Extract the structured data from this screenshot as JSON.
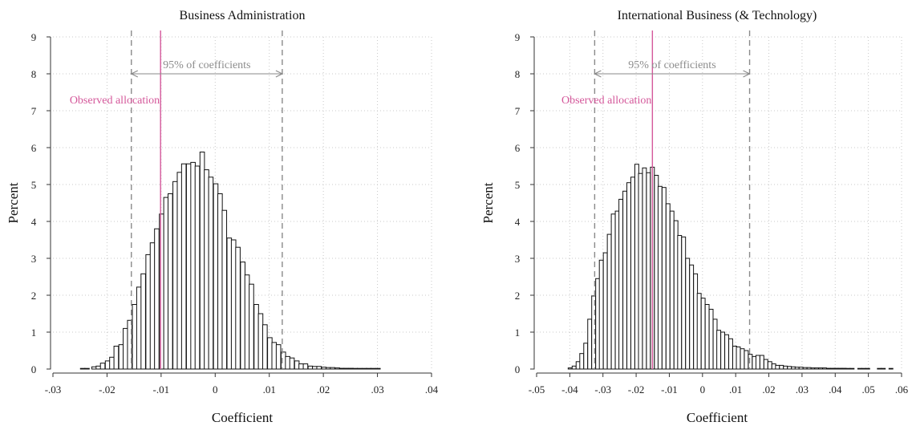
{
  "chart_data": [
    {
      "type": "bar",
      "title": "Business Administration",
      "xlabel": "Coefficient",
      "ylabel": "Percent",
      "xlim": [
        -0.03,
        0.04
      ],
      "ylim": [
        0,
        9
      ],
      "x_ticks": [
        -0.03,
        -0.02,
        -0.01,
        0,
        0.01,
        0.02,
        0.03,
        0.04
      ],
      "x_tick_labels": [
        "-.03",
        "-.02",
        "-.01",
        "0",
        ".01",
        ".02",
        ".03",
        ".04"
      ],
      "y_ticks": [
        0,
        1,
        2,
        3,
        4,
        5,
        6,
        7,
        8,
        9
      ],
      "y_tick_labels": [
        "0",
        "1",
        "2",
        "3",
        "4",
        "5",
        "6",
        "7",
        "8",
        "9"
      ],
      "grid": true,
      "bin_width": 0.00083,
      "bins": [
        {
          "x": -0.0245,
          "y": 0.01
        },
        {
          "x": -0.0237,
          "y": 0.01
        },
        {
          "x": -0.0224,
          "y": 0.06
        },
        {
          "x": -0.0216,
          "y": 0.08
        },
        {
          "x": -0.0208,
          "y": 0.16
        },
        {
          "x": -0.0199,
          "y": 0.22
        },
        {
          "x": -0.0191,
          "y": 0.32
        },
        {
          "x": -0.0183,
          "y": 0.62
        },
        {
          "x": -0.0174,
          "y": 0.66
        },
        {
          "x": -0.0166,
          "y": 1.1
        },
        {
          "x": -0.0158,
          "y": 1.32
        },
        {
          "x": -0.0149,
          "y": 1.75
        },
        {
          "x": -0.0141,
          "y": 2.22
        },
        {
          "x": -0.0133,
          "y": 2.58
        },
        {
          "x": -0.0124,
          "y": 3.1
        },
        {
          "x": -0.0116,
          "y": 3.42
        },
        {
          "x": -0.0108,
          "y": 3.8
        },
        {
          "x": -0.0099,
          "y": 4.2
        },
        {
          "x": -0.0091,
          "y": 4.65
        },
        {
          "x": -0.0083,
          "y": 4.75
        },
        {
          "x": -0.0074,
          "y": 5.08
        },
        {
          "x": -0.0066,
          "y": 5.33
        },
        {
          "x": -0.0058,
          "y": 5.56
        },
        {
          "x": -0.0049,
          "y": 5.56
        },
        {
          "x": -0.0041,
          "y": 5.6
        },
        {
          "x": -0.0033,
          "y": 5.5
        },
        {
          "x": -0.0024,
          "y": 5.88
        },
        {
          "x": -0.0016,
          "y": 5.4
        },
        {
          "x": -0.0008,
          "y": 5.2
        },
        {
          "x": 0.0001,
          "y": 5.02
        },
        {
          "x": 0.0009,
          "y": 4.75
        },
        {
          "x": 0.0017,
          "y": 4.3
        },
        {
          "x": 0.0026,
          "y": 3.55
        },
        {
          "x": 0.0034,
          "y": 3.5
        },
        {
          "x": 0.0042,
          "y": 3.3
        },
        {
          "x": 0.0051,
          "y": 2.9
        },
        {
          "x": 0.0059,
          "y": 2.55
        },
        {
          "x": 0.0067,
          "y": 2.3
        },
        {
          "x": 0.0076,
          "y": 1.75
        },
        {
          "x": 0.0084,
          "y": 1.5
        },
        {
          "x": 0.0092,
          "y": 1.2
        },
        {
          "x": 0.0101,
          "y": 0.85
        },
        {
          "x": 0.0109,
          "y": 0.72
        },
        {
          "x": 0.0117,
          "y": 0.66
        },
        {
          "x": 0.0126,
          "y": 0.46
        },
        {
          "x": 0.0134,
          "y": 0.34
        },
        {
          "x": 0.0142,
          "y": 0.3
        },
        {
          "x": 0.0151,
          "y": 0.22
        },
        {
          "x": 0.0159,
          "y": 0.14
        },
        {
          "x": 0.0167,
          "y": 0.14
        },
        {
          "x": 0.0176,
          "y": 0.08
        },
        {
          "x": 0.0184,
          "y": 0.07
        },
        {
          "x": 0.0192,
          "y": 0.07
        },
        {
          "x": 0.0201,
          "y": 0.05
        },
        {
          "x": 0.0209,
          "y": 0.04
        },
        {
          "x": 0.0217,
          "y": 0.04
        },
        {
          "x": 0.0226,
          "y": 0.03
        },
        {
          "x": 0.0234,
          "y": 0.02
        },
        {
          "x": 0.0242,
          "y": 0.02
        },
        {
          "x": 0.0251,
          "y": 0.02
        },
        {
          "x": 0.0259,
          "y": 0.01
        },
        {
          "x": 0.0267,
          "y": 0.01
        },
        {
          "x": 0.0276,
          "y": 0.01
        },
        {
          "x": 0.0284,
          "y": 0.01
        },
        {
          "x": 0.0292,
          "y": 0.01
        },
        {
          "x": 0.0301,
          "y": 0.01
        }
      ],
      "ci_lower": -0.0155,
      "ci_upper": 0.0124,
      "ci_label": "95% of coefficients",
      "ci_arrow_y": 8.0,
      "observed": -0.0101,
      "observed_label": "Observed allocation",
      "observed_label_y": 7.3
    },
    {
      "type": "bar",
      "title": "International Business (& Technology)",
      "xlabel": "Coefficient",
      "ylabel": "Percent",
      "xlim": [
        -0.05,
        0.06
      ],
      "ylim": [
        0,
        9
      ],
      "x_ticks": [
        -0.05,
        -0.04,
        -0.03,
        -0.02,
        -0.01,
        0,
        0.01,
        0.02,
        0.03,
        0.04,
        0.05,
        0.06
      ],
      "x_tick_labels": [
        "-.05",
        "-.04",
        "-.03",
        "-.02",
        "-.01",
        "0",
        ".01",
        ".02",
        ".03",
        ".04",
        ".05",
        ".06"
      ],
      "y_ticks": [
        0,
        1,
        2,
        3,
        4,
        5,
        6,
        7,
        8,
        9
      ],
      "y_tick_labels": [
        "0",
        "1",
        "2",
        "3",
        "4",
        "5",
        "6",
        "7",
        "8",
        "9"
      ],
      "grid": true,
      "bin_width": 0.00118,
      "bins": [
        {
          "x": -0.0399,
          "y": 0.03
        },
        {
          "x": -0.0387,
          "y": 0.08
        },
        {
          "x": -0.0375,
          "y": 0.2
        },
        {
          "x": -0.0364,
          "y": 0.42
        },
        {
          "x": -0.0352,
          "y": 0.7
        },
        {
          "x": -0.034,
          "y": 1.35
        },
        {
          "x": -0.0328,
          "y": 1.98
        },
        {
          "x": -0.0316,
          "y": 2.45
        },
        {
          "x": -0.0305,
          "y": 2.95
        },
        {
          "x": -0.0293,
          "y": 3.15
        },
        {
          "x": -0.0281,
          "y": 3.65
        },
        {
          "x": -0.0269,
          "y": 4.2
        },
        {
          "x": -0.0257,
          "y": 4.28
        },
        {
          "x": -0.0246,
          "y": 4.6
        },
        {
          "x": -0.0234,
          "y": 4.82
        },
        {
          "x": -0.0222,
          "y": 5.05
        },
        {
          "x": -0.021,
          "y": 5.2
        },
        {
          "x": -0.0198,
          "y": 5.55
        },
        {
          "x": -0.0187,
          "y": 5.3
        },
        {
          "x": -0.0175,
          "y": 5.45
        },
        {
          "x": -0.0163,
          "y": 5.32
        },
        {
          "x": -0.0151,
          "y": 5.47
        },
        {
          "x": -0.0139,
          "y": 5.25
        },
        {
          "x": -0.0128,
          "y": 4.95
        },
        {
          "x": -0.0116,
          "y": 4.92
        },
        {
          "x": -0.0104,
          "y": 4.48
        },
        {
          "x": -0.0092,
          "y": 4.28
        },
        {
          "x": -0.008,
          "y": 4.02
        },
        {
          "x": -0.0069,
          "y": 3.62
        },
        {
          "x": -0.0057,
          "y": 3.58
        },
        {
          "x": -0.0045,
          "y": 3.0
        },
        {
          "x": -0.0033,
          "y": 2.82
        },
        {
          "x": -0.0021,
          "y": 2.58
        },
        {
          "x": -0.001,
          "y": 2.05
        },
        {
          "x": 0.0002,
          "y": 1.92
        },
        {
          "x": 0.0014,
          "y": 1.75
        },
        {
          "x": 0.0026,
          "y": 1.62
        },
        {
          "x": 0.0038,
          "y": 1.35
        },
        {
          "x": 0.0049,
          "y": 1.05
        },
        {
          "x": 0.0061,
          "y": 1.0
        },
        {
          "x": 0.0073,
          "y": 0.93
        },
        {
          "x": 0.0085,
          "y": 0.82
        },
        {
          "x": 0.0097,
          "y": 0.62
        },
        {
          "x": 0.0108,
          "y": 0.6
        },
        {
          "x": 0.012,
          "y": 0.55
        },
        {
          "x": 0.0132,
          "y": 0.5
        },
        {
          "x": 0.0144,
          "y": 0.4
        },
        {
          "x": 0.0156,
          "y": 0.34
        },
        {
          "x": 0.0167,
          "y": 0.37
        },
        {
          "x": 0.0179,
          "y": 0.37
        },
        {
          "x": 0.0191,
          "y": 0.26
        },
        {
          "x": 0.0203,
          "y": 0.2
        },
        {
          "x": 0.0215,
          "y": 0.14
        },
        {
          "x": 0.0226,
          "y": 0.1
        },
        {
          "x": 0.0238,
          "y": 0.1
        },
        {
          "x": 0.025,
          "y": 0.08
        },
        {
          "x": 0.0262,
          "y": 0.07
        },
        {
          "x": 0.0274,
          "y": 0.06
        },
        {
          "x": 0.0285,
          "y": 0.05
        },
        {
          "x": 0.0297,
          "y": 0.05
        },
        {
          "x": 0.0309,
          "y": 0.04
        },
        {
          "x": 0.0321,
          "y": 0.04
        },
        {
          "x": 0.0333,
          "y": 0.03
        },
        {
          "x": 0.0344,
          "y": 0.03
        },
        {
          "x": 0.0356,
          "y": 0.03
        },
        {
          "x": 0.0368,
          "y": 0.03
        },
        {
          "x": 0.038,
          "y": 0.02
        },
        {
          "x": 0.0392,
          "y": 0.02
        },
        {
          "x": 0.0403,
          "y": 0.02
        },
        {
          "x": 0.0415,
          "y": 0.02
        },
        {
          "x": 0.0427,
          "y": 0.02
        },
        {
          "x": 0.0439,
          "y": 0.01
        },
        {
          "x": 0.0451,
          "y": 0.01
        },
        {
          "x": 0.0474,
          "y": 0.01
        },
        {
          "x": 0.0486,
          "y": 0.01
        },
        {
          "x": 0.0498,
          "y": 0.01
        },
        {
          "x": 0.0533,
          "y": 0.01
        },
        {
          "x": 0.0545,
          "y": 0.01
        },
        {
          "x": 0.0568,
          "y": 0.01
        }
      ],
      "ci_lower": -0.0325,
      "ci_upper": 0.0142,
      "ci_label": "95% of coefficients",
      "ci_arrow_y": 8.0,
      "observed": -0.0151,
      "observed_label": "Observed allocation",
      "observed_label_y": 7.3
    }
  ],
  "colors": {
    "bar_fill": "#ffffff",
    "bar_stroke": "#111111",
    "ci_line": "#8a8a8a",
    "observed_line": "#d4579a",
    "grid": "#c8c8c8",
    "axis": "#333333"
  }
}
